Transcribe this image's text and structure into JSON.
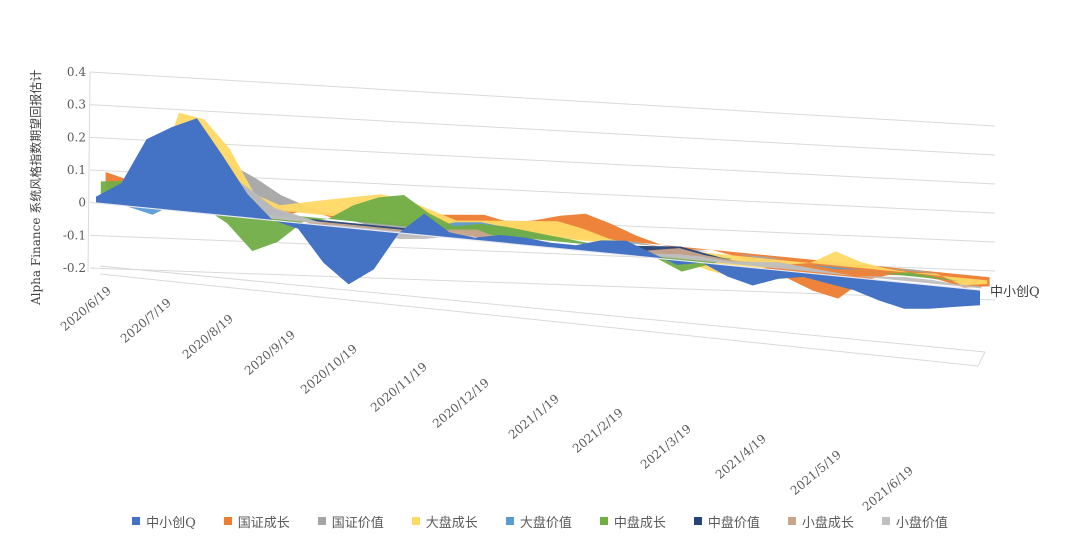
{
  "chart_data": {
    "type": "area",
    "subtype": "3d-area",
    "title": "",
    "ylabel": "Alpha Finance 系统风格指数期望回报估计",
    "xlabel": "",
    "ylim": [
      -0.2,
      0.4
    ],
    "yticks": [
      0.4,
      0.3,
      0.2,
      0.1,
      0,
      -0.1,
      -0.2
    ],
    "ytick_labels": [
      "0.4",
      "0.3",
      "0.2",
      "0.1",
      "0",
      "-0.1",
      "-0.2"
    ],
    "xtick_labels": [
      "2020/6/19",
      "2020/7/19",
      "2020/8/19",
      "2020/9/19",
      "2020/10/19",
      "2020/11/19",
      "2020/12/19",
      "2021/1/19",
      "2021/2/19",
      "2021/3/19",
      "2021/4/19",
      "2021/5/19",
      "2021/6/19"
    ],
    "depth_axis_label": "中小创Q",
    "grid": true,
    "legend_position": "bottom",
    "x": [
      "2020/6/19",
      "2020/7/1",
      "2020/7/10",
      "2020/7/19",
      "2020/7/25",
      "2020/8/1",
      "2020/8/10",
      "2020/8/19",
      "2020/8/28",
      "2020/9/10",
      "2020/9/19",
      "2020/10/1",
      "2020/10/10",
      "2020/10/19",
      "2020/11/1",
      "2020/11/10",
      "2020/11/19",
      "2020/12/1",
      "2020/12/19",
      "2021/1/1",
      "2021/1/10",
      "2021/1/19",
      "2021/2/1",
      "2021/2/10",
      "2021/2/19",
      "2021/3/1",
      "2021/3/10",
      "2021/3/19",
      "2021/4/1",
      "2021/4/19",
      "2021/5/1",
      "2021/5/10",
      "2021/5/19",
      "2021/6/1",
      "2021/6/10",
      "2021/6/19"
    ],
    "series": [
      {
        "name": "中小创Q",
        "color": "#4472C4",
        "values": [
          0.02,
          0.07,
          0.22,
          0.27,
          0.31,
          0.2,
          0.08,
          0.0,
          -0.02,
          -0.13,
          -0.2,
          -0.14,
          0.0,
          0.08,
          0.02,
          0.01,
          0.03,
          0.03,
          0.02,
          0.02,
          0.05,
          0.06,
          0.02,
          -0.02,
          0.0,
          -0.05,
          -0.08,
          -0.04,
          -0.02,
          -0.04,
          -0.06,
          -0.1,
          -0.13,
          -0.12,
          -0.1,
          -0.08
        ]
      },
      {
        "name": "国证成长",
        "color": "#ED7D31",
        "values": [
          0.06,
          0.04,
          0.02,
          0.01,
          0.0,
          -0.01,
          -0.02,
          -0.03,
          0.0,
          -0.02,
          -0.01,
          0.0,
          0.01,
          0.03,
          0.04,
          0.05,
          0.03,
          0.05,
          0.08,
          0.1,
          0.07,
          0.03,
          0.0,
          -0.01,
          0.0,
          -0.02,
          -0.06,
          -0.1,
          -0.15,
          -0.18,
          -0.08,
          -0.04,
          -0.03,
          -0.04,
          -0.07,
          -0.05
        ]
      },
      {
        "name": "国证价值",
        "color": "#A5A5A5",
        "values": [
          0.0,
          0.01,
          0.02,
          0.03,
          0.1,
          0.14,
          0.1,
          0.05,
          0.02,
          0.0,
          -0.02,
          -0.04,
          -0.06,
          -0.05,
          -0.02,
          -0.04,
          -0.03,
          -0.02,
          -0.01,
          0.0,
          0.0,
          0.01,
          0.0,
          -0.01,
          0.0,
          0.0,
          -0.01,
          0.0,
          0.0,
          -0.01,
          0.0,
          0.0,
          0.01,
          0.0,
          0.0,
          0.0
        ]
      },
      {
        "name": "大盘成长",
        "color": "#FFD966",
        "values": [
          -0.02,
          0.0,
          0.05,
          0.3,
          0.29,
          0.2,
          0.05,
          0.02,
          0.04,
          0.06,
          0.08,
          0.1,
          0.09,
          0.06,
          0.03,
          0.04,
          0.05,
          0.06,
          0.07,
          0.05,
          0.02,
          0.0,
          -0.03,
          -0.05,
          -0.08,
          -0.1,
          -0.05,
          -0.02,
          0.0,
          0.07,
          0.03,
          0.01,
          0.0,
          0.01,
          -0.04,
          -0.02
        ]
      },
      {
        "name": "大盘价值",
        "color": "#5B9BD5",
        "values": [
          -0.01,
          -0.03,
          -0.05,
          0.0,
          0.0,
          0.0,
          0.0,
          0.0,
          0.0,
          0.0,
          0.0,
          0.0,
          0.0,
          0.0,
          0.03,
          0.04,
          0.03,
          0.02,
          0.0,
          0.0,
          0.0,
          0.0,
          0.0,
          0.0,
          0.0,
          0.0,
          0.0,
          0.0,
          0.0,
          -0.01,
          0.0,
          0.0,
          0.0,
          0.0,
          0.0,
          0.0
        ]
      },
      {
        "name": "中盘成长",
        "color": "#70AD47",
        "values": [
          0.05,
          0.06,
          0.03,
          0.0,
          0.0,
          -0.05,
          -0.14,
          -0.1,
          -0.02,
          0.0,
          0.06,
          0.1,
          0.12,
          0.06,
          0.02,
          0.04,
          0.04,
          0.03,
          0.02,
          0.01,
          0.0,
          -0.01,
          -0.03,
          -0.08,
          -0.04,
          0.0,
          0.0,
          0.0,
          0.0,
          0.0,
          0.0,
          0.0,
          0.02,
          0.01,
          0.0,
          0.0
        ]
      },
      {
        "name": "中盘价值",
        "color": "#264478",
        "values": [
          0.0,
          0.0,
          0.0,
          0.0,
          0.05,
          0.12,
          0.08,
          0.02,
          0.0,
          -0.02,
          -0.05,
          -0.04,
          -0.01,
          0.0,
          0.0,
          0.0,
          0.0,
          0.0,
          0.0,
          0.0,
          0.0,
          0.02,
          0.03,
          0.04,
          0.02,
          0.0,
          0.0,
          0.0,
          0.0,
          0.0,
          0.0,
          0.0,
          0.0,
          0.0,
          0.0,
          0.0
        ]
      },
      {
        "name": "小盘成长",
        "color": "#C9A58B",
        "values": [
          0.0,
          0.0,
          0.0,
          0.0,
          0.0,
          0.0,
          0.0,
          0.0,
          0.0,
          -0.03,
          -0.06,
          -0.05,
          -0.03,
          0.0,
          0.02,
          0.03,
          0.0,
          0.0,
          0.0,
          0.0,
          0.0,
          0.0,
          0.02,
          0.04,
          0.02,
          0.01,
          0.0,
          0.0,
          0.0,
          0.0,
          0.0,
          0.0,
          0.0,
          0.0,
          0.0,
          0.0
        ]
      },
      {
        "name": "小盘价值",
        "color": "#BFBFBF",
        "values": [
          0.0,
          0.0,
          0.02,
          0.05,
          0.1,
          0.15,
          0.1,
          0.04,
          0.02,
          0.0,
          -0.01,
          -0.02,
          -0.03,
          -0.02,
          0.0,
          0.0,
          0.0,
          0.0,
          0.0,
          0.0,
          0.0,
          0.0,
          0.01,
          0.02,
          0.02,
          0.01,
          0.02,
          0.03,
          0.02,
          0.01,
          0.0,
          0.01,
          0.02,
          0.02,
          0.01,
          0.01
        ]
      }
    ]
  }
}
